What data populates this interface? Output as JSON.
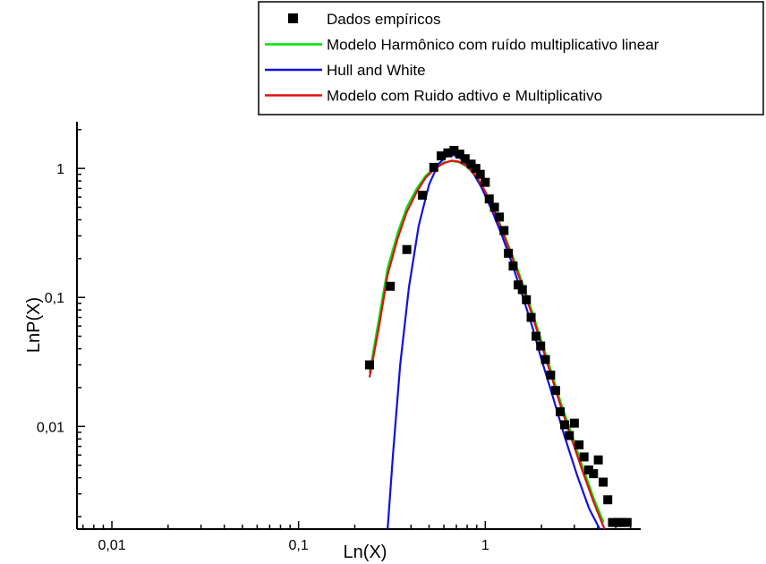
{
  "chart_data": {
    "type": "scatter",
    "xlabel": "Ln(X)",
    "ylabel": "LnP(X)",
    "xscale": "log",
    "yscale": "log",
    "xlim": [
      0.0065,
      6.8
    ],
    "ylim": [
      0.0016,
      2.3
    ],
    "xticks": [
      {
        "value": 0.01,
        "label": "0,01"
      },
      {
        "value": 0.1,
        "label": "0,1"
      },
      {
        "value": 1,
        "label": "1"
      }
    ],
    "yticks": [
      {
        "value": 0.01,
        "label": "0,01"
      },
      {
        "value": 0.1,
        "label": "0,1"
      },
      {
        "value": 1,
        "label": "1"
      }
    ],
    "grid": false,
    "legend_position": "top-right",
    "series": [
      {
        "name": "Dados empíricos",
        "kind": "markers",
        "color": "#000000",
        "points": [
          [
            0.24,
            0.03
          ],
          [
            0.31,
            0.122
          ],
          [
            0.38,
            0.235
          ],
          [
            0.46,
            0.62
          ],
          [
            0.53,
            1.02
          ],
          [
            0.58,
            1.25
          ],
          [
            0.63,
            1.32
          ],
          [
            0.68,
            1.38
          ],
          [
            0.73,
            1.29
          ],
          [
            0.78,
            1.19
          ],
          [
            0.84,
            1.08
          ],
          [
            0.89,
            1.0
          ],
          [
            0.94,
            0.9
          ],
          [
            1.0,
            0.78
          ],
          [
            1.05,
            0.58
          ],
          [
            1.12,
            0.5
          ],
          [
            1.19,
            0.42
          ],
          [
            1.26,
            0.33
          ],
          [
            1.33,
            0.22
          ],
          [
            1.41,
            0.175
          ],
          [
            1.5,
            0.125
          ],
          [
            1.58,
            0.115
          ],
          [
            1.66,
            0.096
          ],
          [
            1.76,
            0.07
          ],
          [
            1.87,
            0.05
          ],
          [
            1.98,
            0.042
          ],
          [
            2.1,
            0.033
          ],
          [
            2.24,
            0.025
          ],
          [
            2.38,
            0.019
          ],
          [
            2.52,
            0.013
          ],
          [
            2.66,
            0.0103
          ],
          [
            2.82,
            0.0085
          ],
          [
            3.0,
            0.0106
          ],
          [
            3.18,
            0.0072
          ],
          [
            3.38,
            0.0058
          ],
          [
            3.58,
            0.0046
          ],
          [
            3.8,
            0.0043
          ],
          [
            4.03,
            0.0055
          ],
          [
            4.28,
            0.0037
          ],
          [
            4.53,
            0.0027
          ],
          [
            4.8,
            0.0018
          ],
          [
            5.1,
            0.0018
          ],
          [
            5.4,
            0.0018
          ],
          [
            5.75,
            0.0018
          ]
        ]
      },
      {
        "name": "Modelo Harmônico com ruído multiplicativo linear",
        "kind": "line",
        "color": "#00e000",
        "points": [
          [
            0.24,
            0.026
          ],
          [
            0.27,
            0.07
          ],
          [
            0.3,
            0.17
          ],
          [
            0.34,
            0.32
          ],
          [
            0.38,
            0.5
          ],
          [
            0.43,
            0.7
          ],
          [
            0.48,
            0.88
          ],
          [
            0.54,
            1.02
          ],
          [
            0.6,
            1.11
          ],
          [
            0.66,
            1.14
          ],
          [
            0.72,
            1.12
          ],
          [
            0.8,
            1.03
          ],
          [
            0.9,
            0.85
          ],
          [
            1.0,
            0.66
          ],
          [
            1.12,
            0.47
          ],
          [
            1.25,
            0.32
          ],
          [
            1.4,
            0.21
          ],
          [
            1.58,
            0.13
          ],
          [
            1.78,
            0.078
          ],
          [
            2.0,
            0.046
          ],
          [
            2.25,
            0.027
          ],
          [
            2.55,
            0.015
          ],
          [
            2.9,
            0.0087
          ],
          [
            3.3,
            0.005
          ],
          [
            3.8,
            0.0028
          ],
          [
            4.3,
            0.0018
          ]
        ]
      },
      {
        "name": "Hull and White",
        "kind": "line",
        "color": "#1010e0",
        "points": [
          [
            0.3,
            0.0016
          ],
          [
            0.32,
            0.006
          ],
          [
            0.35,
            0.03
          ],
          [
            0.39,
            0.12
          ],
          [
            0.44,
            0.36
          ],
          [
            0.5,
            0.75
          ],
          [
            0.56,
            1.08
          ],
          [
            0.62,
            1.24
          ],
          [
            0.68,
            1.27
          ],
          [
            0.75,
            1.18
          ],
          [
            0.84,
            0.98
          ],
          [
            0.95,
            0.72
          ],
          [
            1.08,
            0.48
          ],
          [
            1.22,
            0.31
          ],
          [
            1.38,
            0.19
          ],
          [
            1.56,
            0.11
          ],
          [
            1.78,
            0.06
          ],
          [
            2.0,
            0.033
          ],
          [
            2.3,
            0.017
          ],
          [
            2.65,
            0.0085
          ],
          [
            3.1,
            0.0042
          ],
          [
            3.6,
            0.0023
          ],
          [
            4.1,
            0.0016
          ]
        ]
      },
      {
        "name": "Modelo com Ruido adtivo e Multiplicativo",
        "kind": "line",
        "color": "#e01010",
        "points": [
          [
            0.24,
            0.024
          ],
          [
            0.27,
            0.06
          ],
          [
            0.3,
            0.15
          ],
          [
            0.34,
            0.29
          ],
          [
            0.38,
            0.46
          ],
          [
            0.43,
            0.66
          ],
          [
            0.48,
            0.85
          ],
          [
            0.54,
            1.0
          ],
          [
            0.6,
            1.1
          ],
          [
            0.66,
            1.15
          ],
          [
            0.72,
            1.13
          ],
          [
            0.8,
            1.04
          ],
          [
            0.9,
            0.86
          ],
          [
            1.0,
            0.66
          ],
          [
            1.12,
            0.46
          ],
          [
            1.25,
            0.31
          ],
          [
            1.4,
            0.2
          ],
          [
            1.58,
            0.122
          ],
          [
            1.78,
            0.073
          ],
          [
            2.0,
            0.043
          ],
          [
            2.25,
            0.025
          ],
          [
            2.55,
            0.014
          ],
          [
            2.9,
            0.008
          ],
          [
            3.3,
            0.0046
          ],
          [
            3.8,
            0.0026
          ],
          [
            4.35,
            0.0016
          ]
        ]
      }
    ]
  }
}
